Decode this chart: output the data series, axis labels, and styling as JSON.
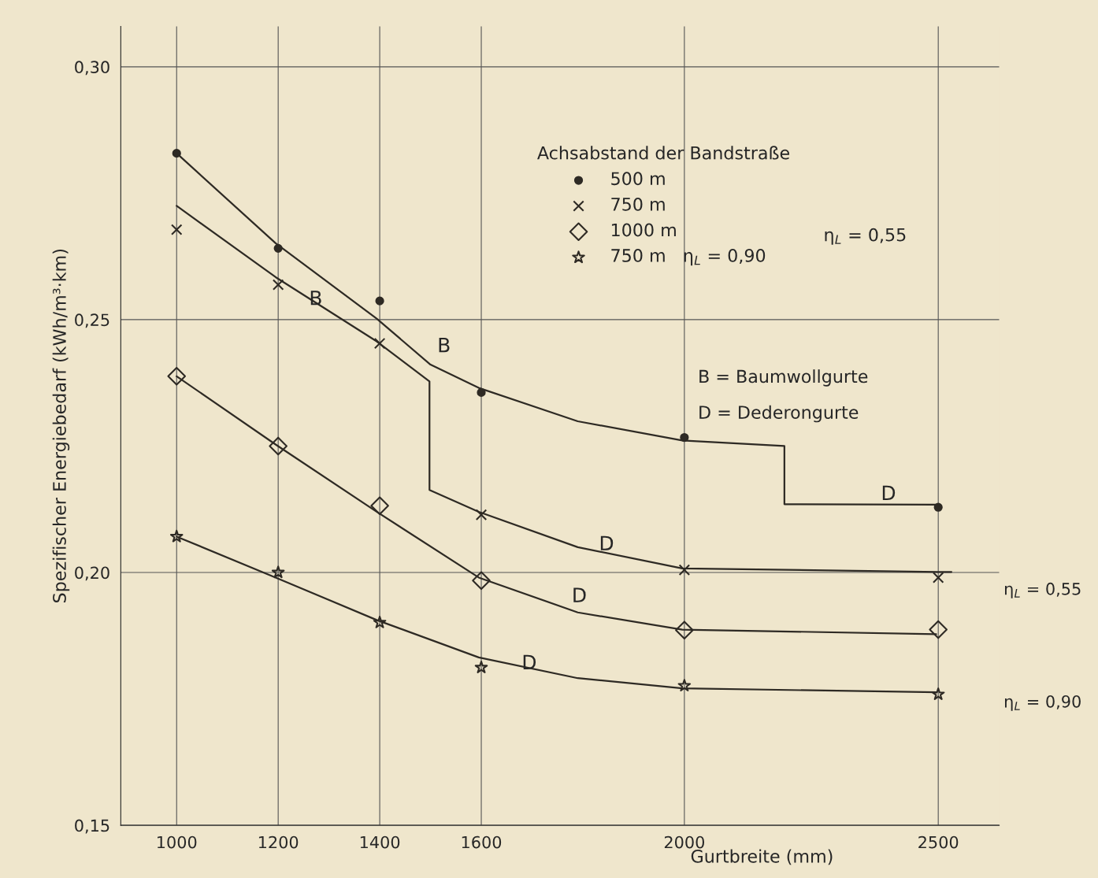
{
  "chart_data": {
    "type": "scatter",
    "xlabel": "Gurtbreite (mm)",
    "ylabel": "Spezifischer Energiebedarf (kWh/m³·km)",
    "legend_title": "Achsabstand der Bandstraße",
    "legend": "top right",
    "grid": true,
    "xlim": [
      890,
      2620
    ],
    "ylim": [
      0.15,
      0.308
    ],
    "xticks": [
      1000,
      1200,
      1400,
      1600,
      2000,
      2500
    ],
    "yticks": [
      {
        "value": 0.15,
        "label": "0,15"
      },
      {
        "value": 0.2,
        "label": "0,20"
      },
      {
        "value": 0.25,
        "label": "0,25"
      },
      {
        "value": 0.3,
        "label": "0,30"
      }
    ],
    "series": [
      {
        "name": "500 m",
        "color": "#2e2a24",
        "marker": "circle",
        "x": [
          1000,
          1200,
          1400,
          1600,
          2000,
          2500
        ],
        "values": [
          0.2829,
          0.2641,
          0.2537,
          0.2356,
          0.2267,
          0.2129
        ]
      },
      {
        "name": "750 m",
        "color": "#2e2a24",
        "marker": "cross",
        "x": [
          1000,
          1200,
          1400,
          1600,
          2000,
          2500
        ],
        "values": [
          0.2678,
          0.2569,
          0.2453,
          0.2114,
          0.2005,
          0.199
        ]
      },
      {
        "name": "1000 m",
        "color": "#2e2a24",
        "marker": "diamond",
        "x": [
          1000,
          1200,
          1400,
          1600,
          2000,
          2500
        ],
        "values": [
          0.2388,
          0.225,
          0.2132,
          0.1984,
          0.1886,
          0.1887
        ]
      },
      {
        "name": "750 m   η$_{L}$ = 0,90",
        "color": "#2e2a24",
        "marker": "star",
        "x": [
          1000,
          1200,
          1400,
          1600,
          2000,
          2500
        ],
        "values": [
          0.2071,
          0.2,
          0.1901,
          0.1812,
          0.1776,
          0.1759
        ]
      },
      {
        "type": "line",
        "color": "#2e2a24",
        "x": [
          1000,
          1195,
          1394,
          1500,
          1595,
          1790,
          1996,
          2197,
          2197,
          2496
        ],
        "values": [
          0.2829,
          0.2651,
          0.2502,
          0.2411,
          0.2365,
          0.2299,
          0.2261,
          0.225,
          0.2135,
          0.2134
        ]
      },
      {
        "type": "line",
        "color": "#2e2a24",
        "x": [
          1000,
          1195,
          1394,
          1498,
          1498,
          1595,
          1790,
          1996,
          2500,
          2526
        ],
        "values": [
          0.2725,
          0.2584,
          0.2457,
          0.2378,
          0.2163,
          0.212,
          0.205,
          0.2008,
          0.2001,
          0.2001
        ]
      },
      {
        "type": "line",
        "color": "#2e2a24",
        "x": [
          1000,
          1195,
          1394,
          1595,
          1790,
          1996,
          2496
        ],
        "values": [
          0.2388,
          0.2253,
          0.212,
          0.199,
          0.1921,
          0.1887,
          0.1878
        ]
      },
      {
        "type": "line",
        "color": "#2e2a24",
        "x": [
          1000,
          1195,
          1394,
          1595,
          1790,
          1996,
          2496
        ],
        "values": [
          0.2071,
          0.199,
          0.1906,
          0.1832,
          0.1791,
          0.1771,
          0.1763
        ]
      }
    ],
    "annotations": [
      "B",
      "B",
      "D",
      "D",
      "D",
      "D",
      "η$_{L}$ = 0,55",
      "B = Baumwollgurte",
      "D = Dederongurte",
      "η$_{L}$ = 0,55",
      "η$_{L}$ = 0,90"
    ]
  }
}
